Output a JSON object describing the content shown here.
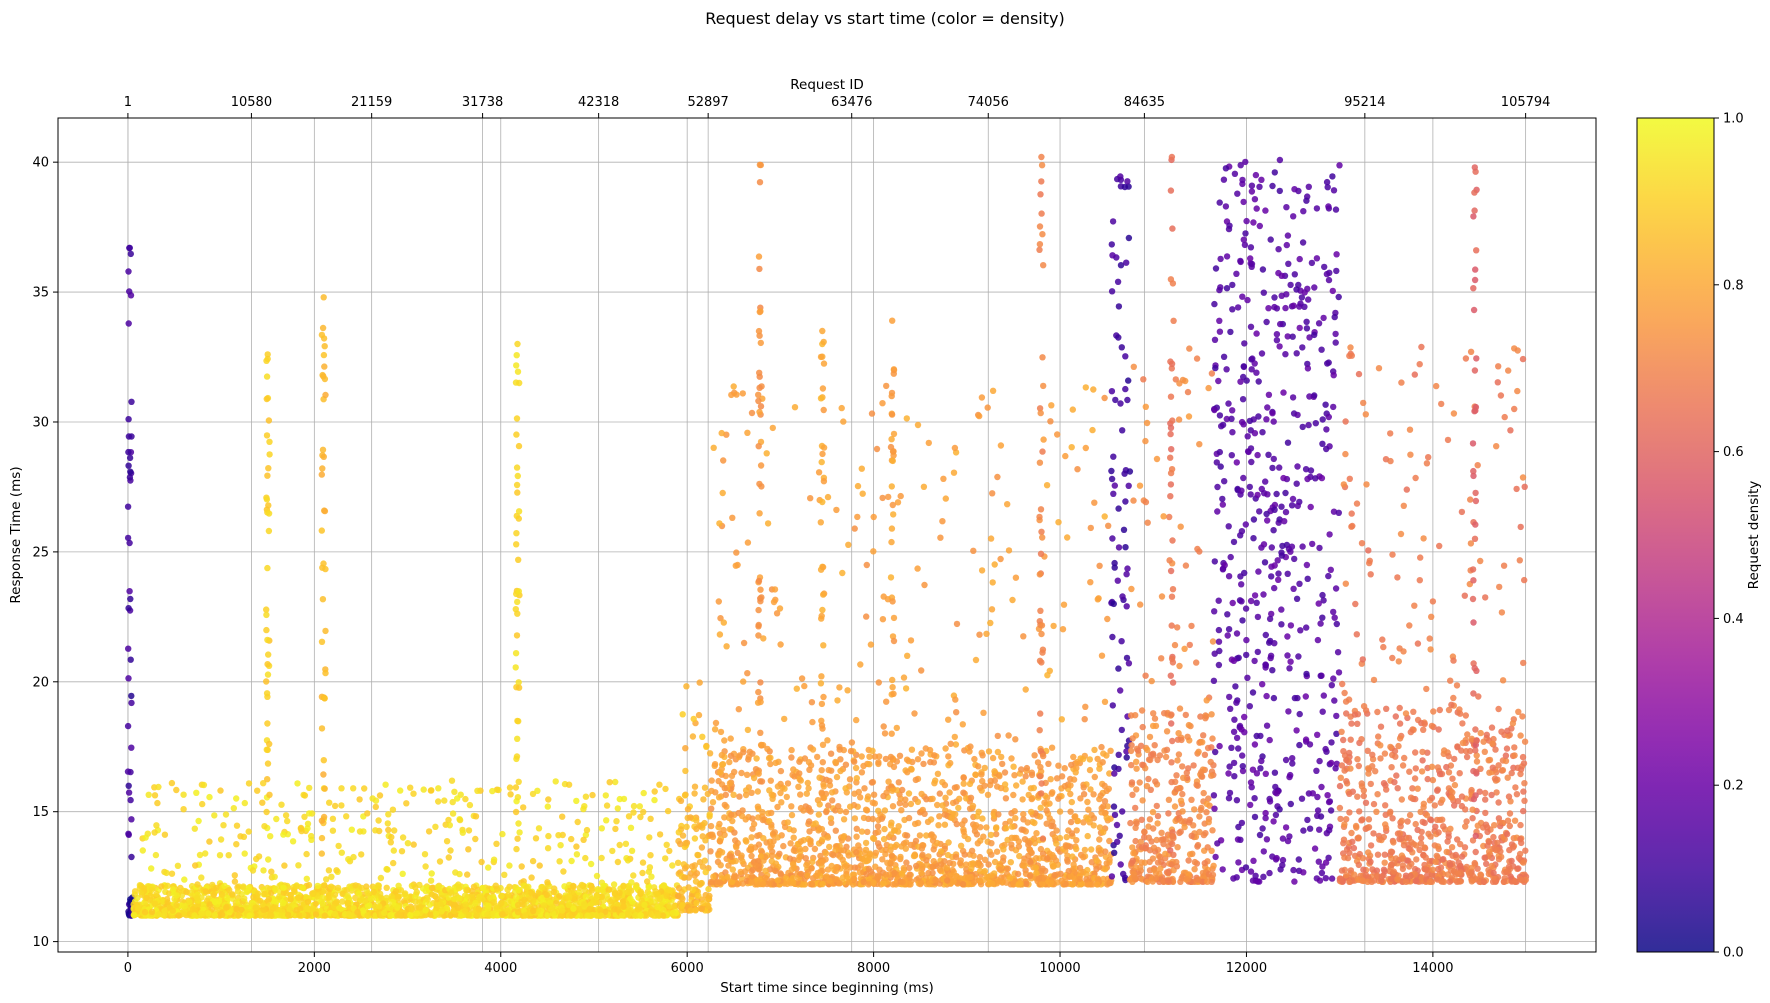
{
  "chart_data": {
    "type": "scatter",
    "title": "Request delay vs start time (color = density)",
    "xlabel": "Start time since beginning (ms)",
    "ylabel": "Response Time (ms)",
    "top_xlabel": "Request ID",
    "colorbar_label": "Request density",
    "xlim": [
      -750,
      15750
    ],
    "ylim": [
      9.6,
      41.7
    ],
    "x_ticks": [
      0,
      2000,
      4000,
      6000,
      8000,
      10000,
      12000,
      14000
    ],
    "x_tick_labels": [
      "0",
      "2000",
      "4000",
      "6000",
      "8000",
      "10000",
      "12000",
      "14000"
    ],
    "y_ticks": [
      10,
      15,
      20,
      25,
      30,
      35,
      40
    ],
    "y_tick_labels": [
      "10",
      "15",
      "20",
      "25",
      "30",
      "35",
      "40"
    ],
    "top_ticks_x": [
      0,
      1325,
      2615,
      3805,
      5050,
      6225,
      7765,
      9230,
      10905,
      13270,
      14995
    ],
    "top_tick_labels": [
      "1",
      "10580",
      "21159",
      "31738",
      "42318",
      "52897",
      "63476",
      "74056",
      "84635",
      "95214",
      "105794"
    ],
    "colorbar_ticks": [
      0.0,
      0.2,
      0.4,
      0.6,
      0.8,
      1.0
    ],
    "colorbar_tick_labels": [
      "0.0",
      "0.2",
      "0.4",
      "0.6",
      "0.8",
      "1.0"
    ],
    "colormap": "plasma",
    "colormap_stops": [
      "#0d0887",
      "#46039f",
      "#7201a8",
      "#9c179e",
      "#bd3786",
      "#d8576b",
      "#ed7953",
      "#fb9f3a",
      "#fdca26",
      "#f0f921"
    ],
    "grid": true,
    "series": [
      {
        "segments": [
          {
            "x": [
              0,
              60
            ],
            "y_base": [
              11.0,
              11.7
            ],
            "density": 0.05
          },
          {
            "x": [
              60,
              5900
            ],
            "y_base": [
              11.0,
              12.2
            ],
            "density": 0.93
          },
          {
            "x": [
              5900,
              6250
            ],
            "y_base": [
              11.2,
              16.0
            ],
            "density": 0.85
          },
          {
            "x": [
              6250,
              10550
            ],
            "y_base": [
              12.2,
              17.5
            ],
            "density": 0.78
          },
          {
            "x": [
              10550,
              10750
            ],
            "y_base": [
              12.3,
              40.0
            ],
            "density": 0.1
          },
          {
            "x": [
              10750,
              11650
            ],
            "y_base": [
              12.3,
              19.0
            ],
            "density": 0.72
          },
          {
            "x": [
              11650,
              13000
            ],
            "y_base": [
              12.3,
              40.2
            ],
            "density": 0.15
          },
          {
            "x": [
              13000,
              15000
            ],
            "y_base": [
              12.3,
              19.0
            ],
            "density": 0.68
          }
        ],
        "spikes": [
          {
            "x": 20,
            "y_max": 36.7,
            "density": 0.1
          },
          {
            "x": 1500,
            "y_max": 32.6,
            "density": 0.9
          },
          {
            "x": 2100,
            "y_max": 34.8,
            "density": 0.85
          },
          {
            "x": 4180,
            "y_max": 33.0,
            "density": 0.92
          },
          {
            "x": 6780,
            "y_max": 39.9,
            "density": 0.75
          },
          {
            "x": 7450,
            "y_max": 33.5,
            "density": 0.8
          },
          {
            "x": 8200,
            "y_max": 33.9,
            "density": 0.78
          },
          {
            "x": 9800,
            "y_max": 40.2,
            "density": 0.7
          },
          {
            "x": 11200,
            "y_max": 40.2,
            "density": 0.65
          },
          {
            "x": 14450,
            "y_max": 39.8,
            "density": 0.6
          }
        ]
      }
    ]
  }
}
